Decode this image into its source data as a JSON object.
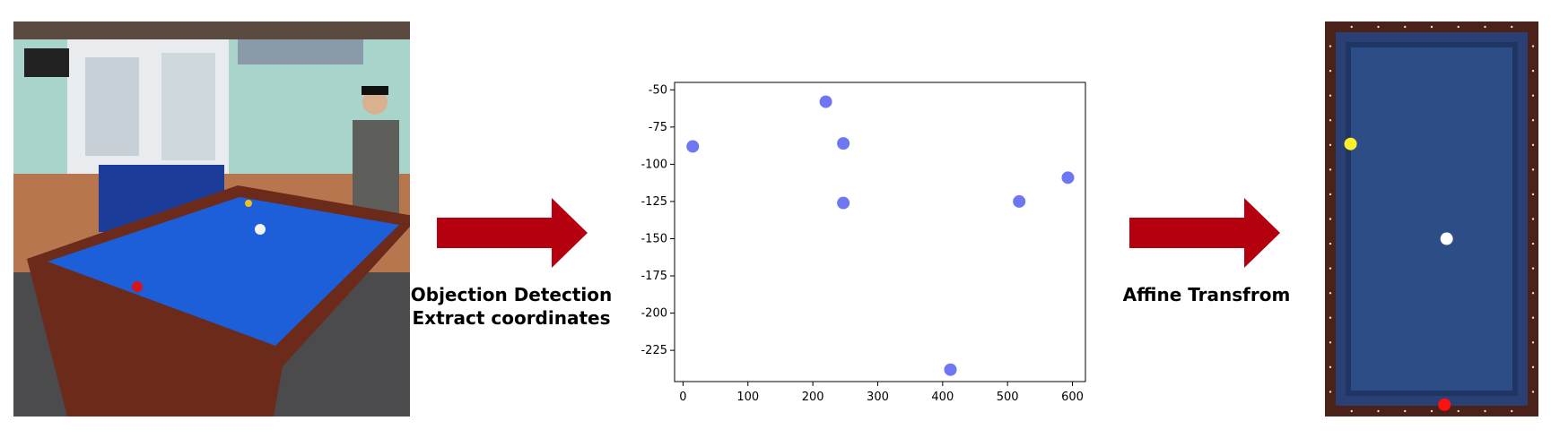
{
  "photo": {
    "description_icon": "billiard-photo-icon",
    "colors": {
      "cloth": "#1d5fd9",
      "rail": "#6b2a1a",
      "wall": "#a9d4cc"
    }
  },
  "arrows": {
    "color": "#b5000f",
    "detect": {
      "line1": "Objection Detection",
      "line2": "Extract coordinates"
    },
    "affine": {
      "line1": "Affine Transfrom"
    }
  },
  "chart_data": {
    "type": "scatter",
    "points": [
      {
        "x": 15,
        "y": -88
      },
      {
        "x": 220,
        "y": -58
      },
      {
        "x": 247,
        "y": -86
      },
      {
        "x": 247,
        "y": -126
      },
      {
        "x": 412,
        "y": -238
      },
      {
        "x": 518,
        "y": -125
      },
      {
        "x": 593,
        "y": -109
      }
    ],
    "xticks": [
      "0",
      "100",
      "200",
      "300",
      "400",
      "500",
      "600"
    ],
    "xtick_values": [
      0,
      100,
      200,
      300,
      400,
      500,
      600
    ],
    "yticks": [
      "-50",
      "-75",
      "-100",
      "-125",
      "-150",
      "-175",
      "-200",
      "-225"
    ],
    "ytick_values": [
      -50,
      -75,
      -100,
      -125,
      -150,
      -175,
      -200,
      -225
    ],
    "xlim": [
      -13,
      620
    ],
    "ylim": [
      -246,
      -45
    ],
    "marker_color": "#4a55ee",
    "grid": false
  },
  "table_top": {
    "colors": {
      "cloth": "#2d4d86",
      "rail": "#4b2219"
    },
    "balls": [
      {
        "name": "yellow",
        "color": "#ffef2a",
        "fx": 0.12,
        "fy": 0.31
      },
      {
        "name": "white",
        "color": "#ffffff",
        "fx": 0.57,
        "fy": 0.55
      },
      {
        "name": "red",
        "color": "#ff1111",
        "fx": 0.56,
        "fy": 0.97
      }
    ]
  }
}
